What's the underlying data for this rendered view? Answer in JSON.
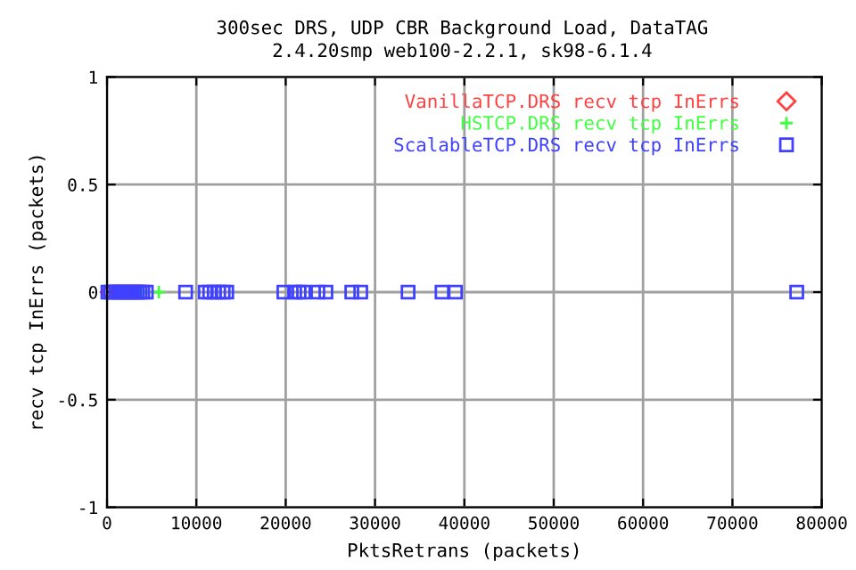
{
  "chart_data": {
    "type": "scatter",
    "title": "300sec DRS, UDP CBR Background Load, DataTAG",
    "subtitle": "2.4.20smp web100-2.2.1, sk98-6.1.4",
    "xlabel": "PktsRetrans (packets)",
    "ylabel": "recv tcp InErrs (packets)",
    "series": [
      {
        "name": "VanillaTCP.DRS recv tcp InErrs",
        "color": "#ff4040",
        "marker": "diamond",
        "x": [
          0,
          100
        ],
        "values": [
          0,
          0
        ]
      },
      {
        "name": "HSTCP.DRS recv tcp InErrs",
        "color": "#40ff40",
        "marker": "cross",
        "x": [
          3900,
          5800
        ],
        "values": [
          0,
          0
        ]
      },
      {
        "name": "ScalableTCP.DRS recv tcp InErrs",
        "color": "#4040ff",
        "marker": "square",
        "x": [
          100,
          400,
          700,
          1000,
          1300,
          1600,
          1900,
          2200,
          2500,
          2800,
          3100,
          3400,
          3700,
          4000,
          4400,
          8800,
          11000,
          11500,
          12000,
          12500,
          13000,
          13400,
          19800,
          21000,
          21500,
          22000,
          23600,
          24500,
          27400,
          28400,
          33700,
          37500,
          39000,
          77200
        ],
        "values": [
          0,
          0,
          0,
          0,
          0,
          0,
          0,
          0,
          0,
          0,
          0,
          0,
          0,
          0,
          0,
          0,
          0,
          0,
          0,
          0,
          0,
          0,
          0,
          0,
          0,
          0,
          0,
          0,
          0,
          0,
          0,
          0,
          0,
          0
        ]
      }
    ],
    "xlim": [
      0,
      80000
    ],
    "xticks": [
      0,
      10000,
      20000,
      30000,
      40000,
      50000,
      60000,
      70000,
      80000
    ],
    "ylim": [
      -1,
      1
    ],
    "yticks": [
      -1,
      -0.5,
      0,
      0.5,
      1
    ],
    "grid": true,
    "legend": "top right"
  }
}
